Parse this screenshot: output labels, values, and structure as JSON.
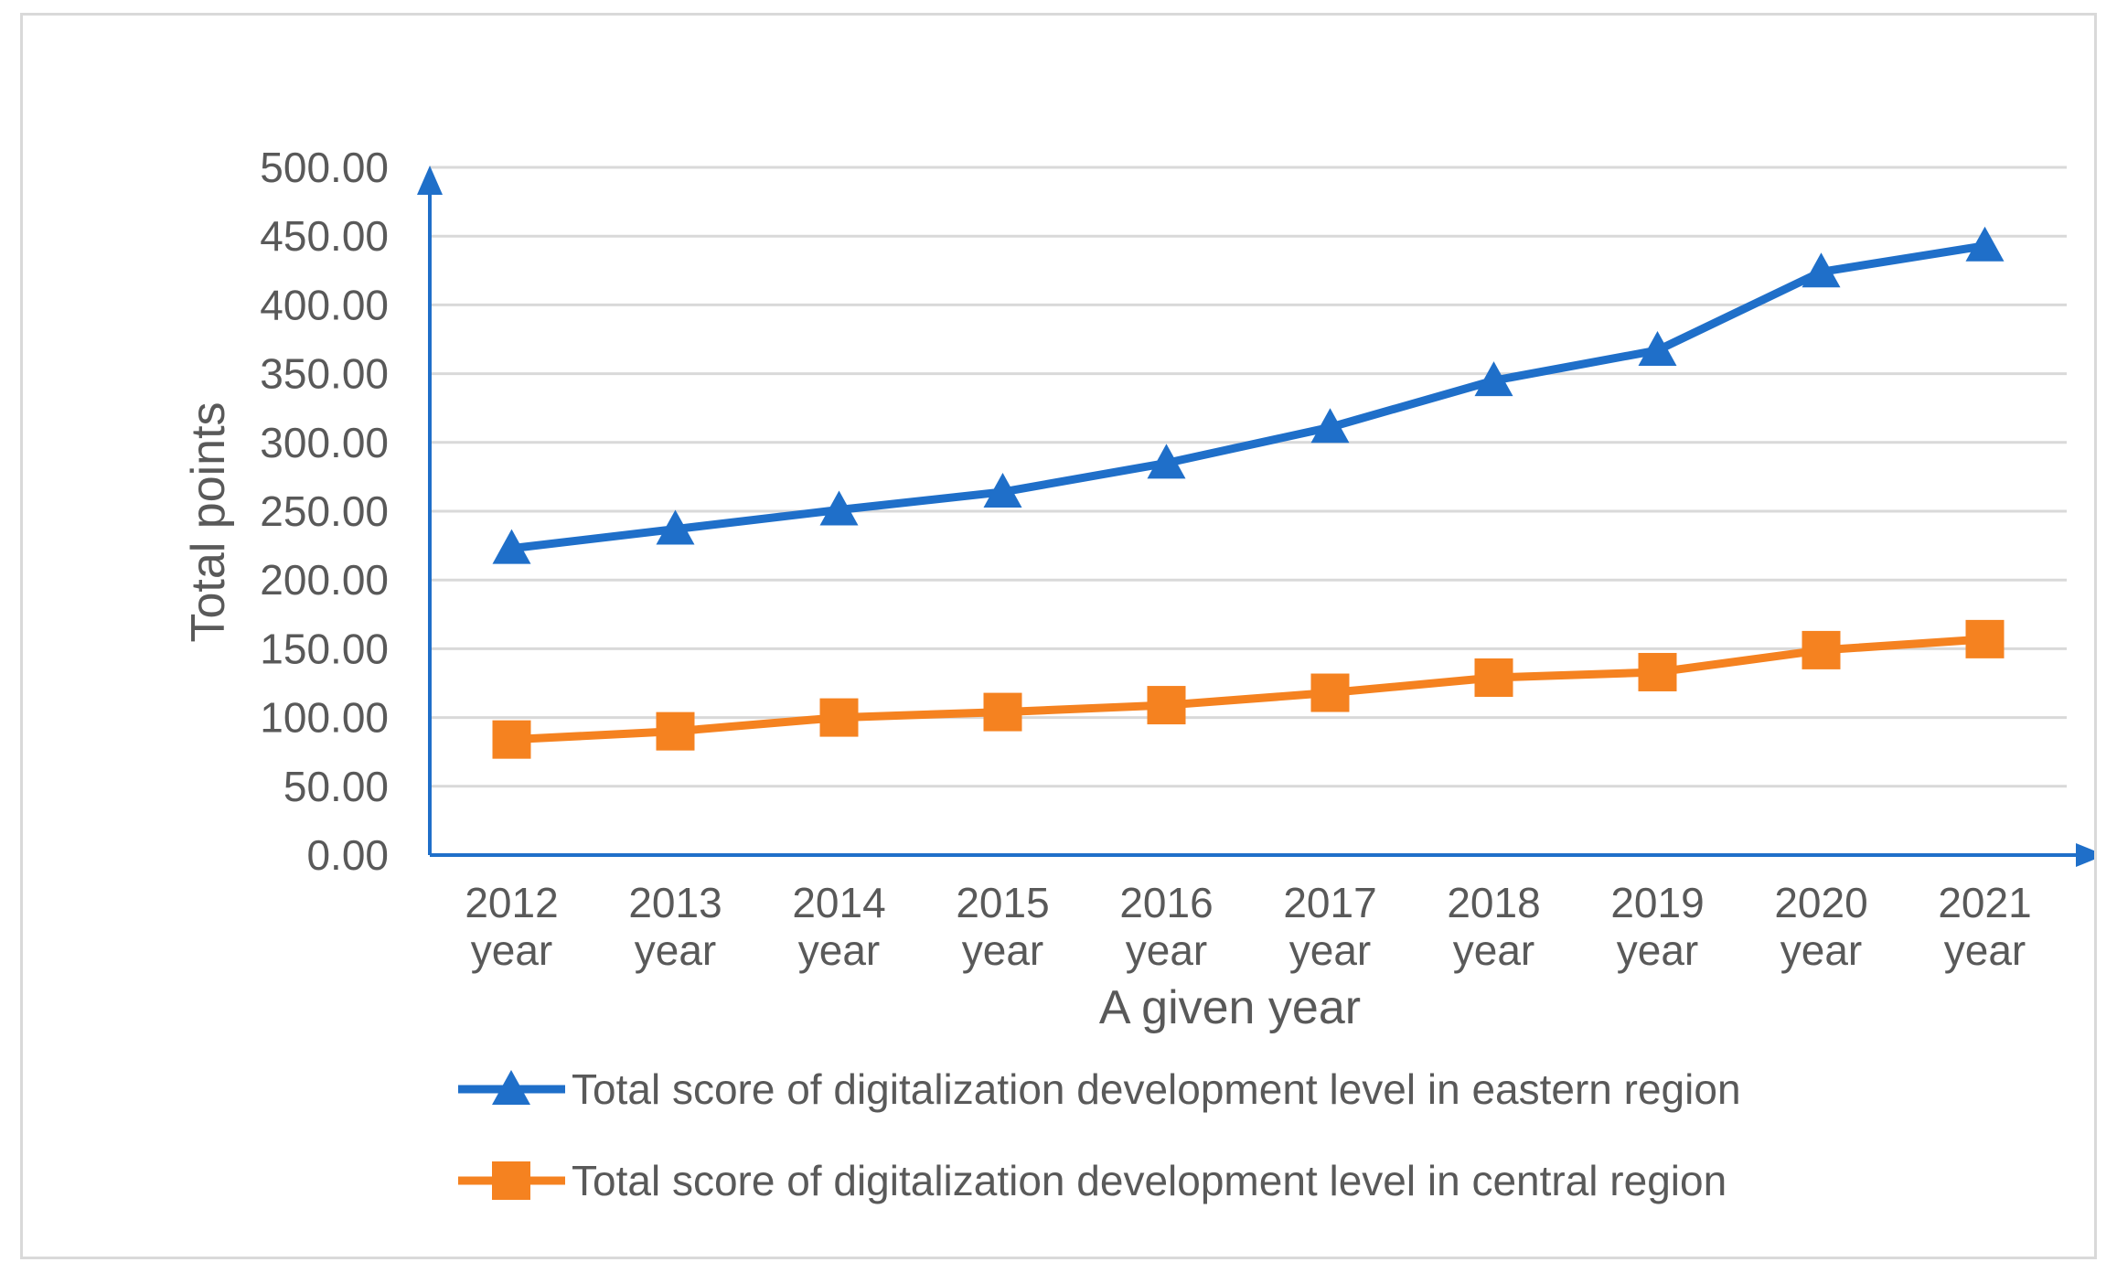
{
  "chart_data": {
    "type": "line",
    "title": "",
    "xlabel": "A given year",
    "ylabel": "Total points",
    "ylim": [
      0,
      500
    ],
    "y_ticks": [
      "0.00",
      "50.00",
      "100.00",
      "150.00",
      "200.00",
      "250.00",
      "300.00",
      "350.00",
      "400.00",
      "450.00",
      "500.00"
    ],
    "y_tick_values": [
      0,
      50,
      100,
      150,
      200,
      250,
      300,
      350,
      400,
      450,
      500
    ],
    "grid": true,
    "legend_position": "bottom",
    "categories": [
      [
        "2012",
        "year"
      ],
      [
        "2013",
        "year"
      ],
      [
        "2014",
        "year"
      ],
      [
        "2015",
        "year"
      ],
      [
        "2016",
        "year"
      ],
      [
        "2017",
        "year"
      ],
      [
        "2018",
        "year"
      ],
      [
        "2019",
        "year"
      ],
      [
        "2020",
        "year"
      ],
      [
        "2021",
        "year"
      ]
    ],
    "series": [
      {
        "name": "Total score of digitalization development level in eastern region",
        "color": "#1f6fc9",
        "marker": "triangle",
        "values": [
          223,
          237,
          251,
          264,
          285,
          311,
          345,
          367,
          424,
          443
        ]
      },
      {
        "name": "Total score of digitalization development level in central region",
        "color": "#f58220",
        "marker": "square",
        "values": [
          84,
          90,
          100,
          104,
          109,
          118,
          129,
          133,
          149,
          157
        ]
      }
    ],
    "colors": {
      "grid": "#d9d9d9",
      "axis": "#1f6fc9",
      "text": "#595959"
    }
  }
}
